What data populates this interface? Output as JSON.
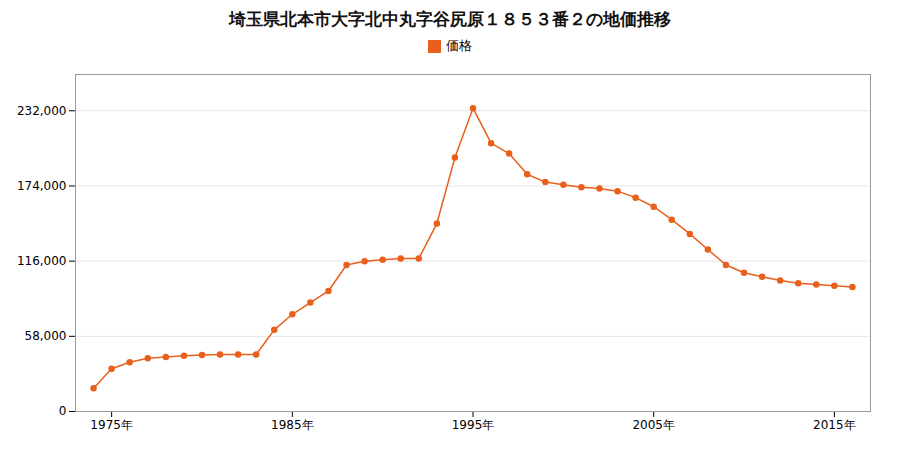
{
  "chart_data": {
    "type": "line",
    "title": "埼玉県北本市大字北中丸字谷尻原１８５３番２の地価推移",
    "x": [
      1974,
      1975,
      1976,
      1977,
      1978,
      1979,
      1980,
      1981,
      1982,
      1983,
      1984,
      1985,
      1986,
      1987,
      1988,
      1989,
      1990,
      1991,
      1992,
      1993,
      1994,
      1995,
      1996,
      1997,
      1998,
      1999,
      2000,
      2001,
      2002,
      2003,
      2004,
      2005,
      2006,
      2007,
      2008,
      2009,
      2010,
      2011,
      2012,
      2013,
      2014,
      2015,
      2016
    ],
    "series": [
      {
        "name": "価格",
        "color": "#e8601c",
        "marker": "circle",
        "values": [
          18000,
          33000,
          38000,
          41000,
          42000,
          43000,
          43500,
          44000,
          44000,
          44000,
          63000,
          75000,
          84000,
          93000,
          113000,
          116000,
          117000,
          118000,
          118000,
          145000,
          196000,
          234000,
          207000,
          199000,
          183000,
          177000,
          175000,
          173000,
          172000,
          170000,
          165000,
          158000,
          148000,
          137000,
          125000,
          113000,
          107000,
          104000,
          101000,
          99000,
          98000,
          97000,
          96000
        ]
      }
    ],
    "xlim": [
      1973,
      2017
    ],
    "xticks": [
      {
        "value": 1975,
        "label": "1975年"
      },
      {
        "value": 1985,
        "label": "1985年"
      },
      {
        "value": 1995,
        "label": "1995年"
      },
      {
        "value": 2005,
        "label": "2005年"
      },
      {
        "value": 2015,
        "label": "2015年"
      }
    ],
    "ylim": [
      0,
      260000
    ],
    "yticks": [
      0,
      {
        "value": 58000,
        "label": "58,000"
      },
      {
        "value": 116000,
        "label": "116,000"
      },
      {
        "value": 174000,
        "label": "174,000"
      },
      {
        "value": 232000,
        "label": "232,000"
      }
    ],
    "grid": true,
    "legend": "top"
  }
}
